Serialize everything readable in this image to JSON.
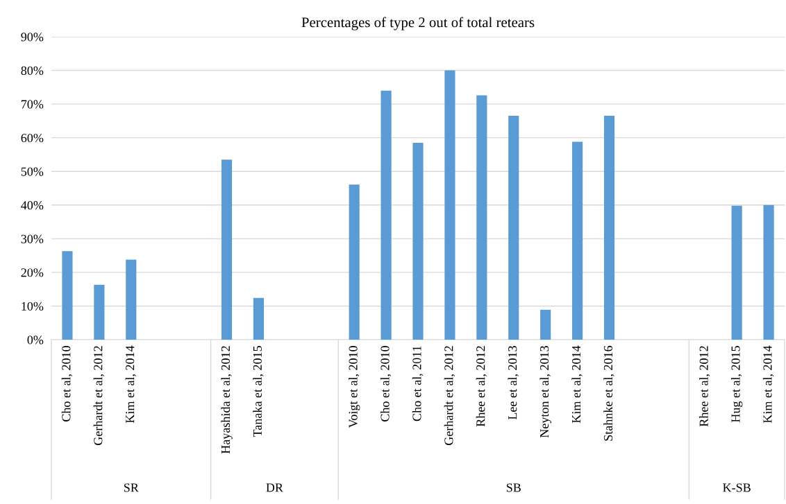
{
  "chart_data": {
    "type": "bar",
    "title": "Percentages of type 2 out of total retears",
    "categories": [
      "Cho et al, 2010",
      "Gerhardt et al, 2012",
      "Kim et al, 2014",
      null,
      null,
      "Hayashida et al, 2012",
      "Tanaka et al, 2015",
      null,
      null,
      "Voigt et al, 2010",
      "Cho et al, 2010",
      "Cho et al, 2011",
      "Gerhardt et al, 2012",
      "Rhee et al, 2012",
      "Lee et al, 2013",
      "Neyton et al, 2013",
      "Kim et al, 2014",
      "Stahnke et al, 2016",
      null,
      null,
      "Rhee et al, 2012",
      "Hug et al, 2015",
      "Kim et al, 2014"
    ],
    "values": [
      26.3,
      16.3,
      23.8,
      null,
      null,
      53.5,
      12.4,
      null,
      null,
      46.1,
      74.0,
      58.5,
      80.0,
      72.6,
      66.5,
      8.9,
      58.8,
      66.5,
      null,
      null,
      null,
      39.8,
      40.0
    ],
    "color": "#5b9bd5",
    "ylim": [
      0,
      90
    ],
    "yticks": [
      {
        "value": 0,
        "label": "0%"
      },
      {
        "value": 10,
        "label": "10%"
      },
      {
        "value": 20,
        "label": "20%"
      },
      {
        "value": 30,
        "label": "30%"
      },
      {
        "value": 40,
        "label": "40%"
      },
      {
        "value": 50,
        "label": "50%"
      },
      {
        "value": 60,
        "label": "60%"
      },
      {
        "value": 70,
        "label": "70%"
      },
      {
        "value": 80,
        "label": "80%"
      },
      {
        "value": 90,
        "label": "90%"
      }
    ],
    "grid": "y",
    "annotations": [
      "SR",
      "DR",
      "SB",
      "K-SB"
    ]
  }
}
